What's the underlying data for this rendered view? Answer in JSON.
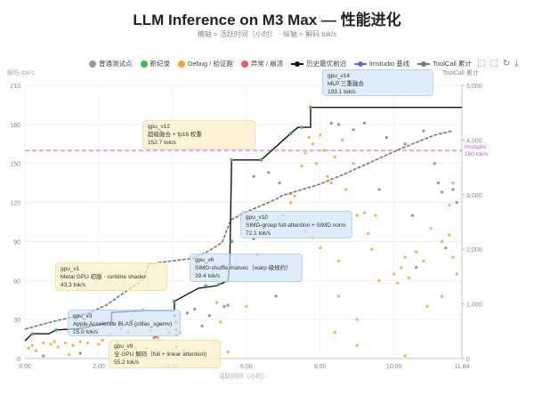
{
  "title": "LLM Inference on M3 Max — 性能进化",
  "subtitle": "横轴 = 活跃时间（小时） · 纵轴 = 解码 tok/s",
  "legend": [
    {
      "label": "普通测试点",
      "color": "#999999",
      "kind": "dot"
    },
    {
      "label": "新纪录",
      "color": "#3cb95a",
      "kind": "dot"
    },
    {
      "label": "Debug / 验证跑",
      "color": "#f2a92b",
      "kind": "dot"
    },
    {
      "label": "异常 / 崩溃",
      "color": "#e85c5c",
      "kind": "dot"
    },
    {
      "label": "历史最优前沿",
      "color": "#111111",
      "kind": "line"
    },
    {
      "label": "lmstudio 基线",
      "color": "#5b6fc9",
      "kind": "line"
    },
    {
      "label": "ToolCall 累计",
      "color": "#777777",
      "kind": "line"
    }
  ],
  "toolbar": [
    {
      "name": "zoom-select-icon",
      "glyph": "⬚"
    },
    {
      "name": "zoom-reset-icon",
      "glyph": "⬚"
    },
    {
      "name": "restore-icon",
      "glyph": "↻"
    },
    {
      "name": "download-icon",
      "glyph": "⤓"
    }
  ],
  "chart_data": {
    "type": "scatter",
    "xlabel": "活跃时间（小时）",
    "ylabel": "解码 tok/s",
    "y2label": "ToolCall 累计",
    "xlim": [
      0,
      11.84
    ],
    "ylim": [
      0,
      210
    ],
    "y2lim": [
      0,
      5000
    ],
    "xticks": [
      "0.00",
      "2.00",
      "4.00",
      "6.00",
      "8.00",
      "10.00",
      "11.84"
    ],
    "yticks": [
      0,
      30,
      60,
      90,
      120,
      150,
      180,
      210
    ],
    "y2ticks": [
      "0",
      "1,000",
      "2,000",
      "3,000",
      "4,000",
      "5,000"
    ],
    "grid": true,
    "legend_position": "top",
    "baseline": {
      "name": "lmstudio",
      "value": 160,
      "label": "160 tok/s",
      "color": "#b45cd6"
    },
    "frontier": [
      [
        0,
        13.7
      ],
      [
        0.2,
        19
      ],
      [
        0.65,
        19
      ],
      [
        0.85,
        22
      ],
      [
        1.5,
        23
      ],
      [
        1.8,
        25
      ],
      [
        2.35,
        28
      ],
      [
        2.35,
        35.5
      ],
      [
        3.3,
        37
      ],
      [
        4.05,
        37
      ],
      [
        4.05,
        44
      ],
      [
        4.7,
        54
      ],
      [
        5.2,
        56
      ],
      [
        5.5,
        60
      ],
      [
        5.55,
        72
      ],
      [
        5.6,
        152.7
      ],
      [
        6.4,
        152.7
      ],
      [
        7.2,
        173
      ],
      [
        7.4,
        177.8
      ],
      [
        7.74,
        177.8
      ],
      [
        7.74,
        193.1
      ],
      [
        11.84,
        193.1
      ]
    ],
    "toolcall_cumulative": [
      [
        0,
        537
      ],
      [
        0.6,
        650
      ],
      [
        1.73,
        830
      ],
      [
        2.21,
        980
      ],
      [
        3.25,
        1470
      ],
      [
        3.29,
        1600
      ],
      [
        3.34,
        1730
      ],
      [
        4.13,
        1800
      ],
      [
        4.54,
        1830
      ],
      [
        4.93,
        1950
      ],
      [
        5.34,
        2120
      ],
      [
        5.58,
        2540
      ],
      [
        6.06,
        2700
      ],
      [
        6.85,
        2930
      ],
      [
        6.95,
        2980
      ],
      [
        7.98,
        3190
      ],
      [
        8.7,
        3390
      ],
      [
        10.14,
        3830
      ],
      [
        11.1,
        4090
      ],
      [
        11.59,
        4170
      ]
    ],
    "series": [
      {
        "name": "新纪录",
        "color": "#3cb95a",
        "points": [
          [
            0.2,
            19
          ],
          [
            0.85,
            22
          ],
          [
            1.6,
            24
          ],
          [
            3.2,
            37
          ],
          [
            4.05,
            44
          ],
          [
            4.9,
            56
          ],
          [
            5.25,
            57
          ],
          [
            5.5,
            60
          ],
          [
            5.55,
            72
          ],
          [
            5.6,
            90
          ],
          [
            5.6,
            152.7
          ],
          [
            6.4,
            152.7
          ],
          [
            7.2,
            173
          ],
          [
            7.5,
            177.8
          ],
          [
            7.74,
            193.1
          ]
        ]
      },
      {
        "name": "Debug / 验证跑",
        "color": "#f2a92b",
        "points": [
          [
            0.1,
            8
          ],
          [
            0.2,
            10
          ],
          [
            0.3,
            6
          ],
          [
            0.5,
            12
          ],
          [
            0.7,
            11
          ],
          [
            0.8,
            13
          ],
          [
            0.9,
            9
          ],
          [
            1.1,
            12
          ],
          [
            1.3,
            10
          ],
          [
            1.5,
            13
          ],
          [
            1.7,
            12
          ],
          [
            2.0,
            11
          ],
          [
            2.1,
            14
          ],
          [
            2.3,
            18
          ],
          [
            2.6,
            23
          ],
          [
            2.8,
            20
          ],
          [
            3.0,
            25
          ],
          [
            3.2,
            28
          ],
          [
            3.4,
            22
          ],
          [
            3.6,
            16
          ],
          [
            3.7,
            26
          ],
          [
            3.9,
            20
          ],
          [
            1.2,
            3
          ],
          [
            2.8,
            10
          ],
          [
            3.3,
            8
          ],
          [
            5.2,
            43
          ],
          [
            5.3,
            28
          ],
          [
            6.0,
            40
          ],
          [
            5.5,
            5
          ],
          [
            7.0,
            110
          ],
          [
            7.2,
            120
          ],
          [
            7.3,
            125
          ],
          [
            7.5,
            148
          ],
          [
            7.6,
            158
          ],
          [
            7.7,
            170
          ],
          [
            7.8,
            165
          ],
          [
            7.9,
            150
          ],
          [
            8.0,
            172
          ],
          [
            8.1,
            160
          ],
          [
            8.2,
            140
          ],
          [
            8.3,
            135
          ],
          [
            8.4,
            155
          ],
          [
            8.6,
            168
          ],
          [
            8.7,
            130
          ],
          [
            8.9,
            150
          ],
          [
            7.6,
            98
          ],
          [
            7.8,
            93
          ],
          [
            8.0,
            85
          ],
          [
            8.5,
            75
          ],
          [
            9.0,
            110
          ],
          [
            9.2,
            112
          ],
          [
            9.3,
            96
          ],
          [
            9.4,
            84
          ],
          [
            9.5,
            110
          ],
          [
            8.5,
            48
          ],
          [
            8.4,
            20
          ],
          [
            9.0,
            30
          ],
          [
            9.6,
            60
          ],
          [
            10.0,
            65
          ],
          [
            10.2,
            70
          ],
          [
            10.3,
            78
          ],
          [
            10.1,
            58
          ],
          [
            10.4,
            62
          ],
          [
            10.6,
            82
          ],
          [
            10.8,
            75
          ],
          [
            11.0,
            100
          ],
          [
            11.3,
            90
          ],
          [
            11.5,
            95
          ],
          [
            11.6,
            78
          ],
          [
            11.7,
            65
          ],
          [
            11.3,
            48
          ],
          [
            9.0,
            10
          ],
          [
            10.3,
            2
          ],
          [
            10.9,
            40
          ],
          [
            11.5,
            118
          ],
          [
            11.6,
            135
          ]
        ]
      },
      {
        "name": "普通测试点",
        "color": "#8a8a8a",
        "points": [
          [
            0.5,
            2
          ],
          [
            1.5,
            4
          ],
          [
            2.5,
            12
          ],
          [
            3.0,
            8
          ],
          [
            4.2,
            20
          ],
          [
            4.4,
            35
          ],
          [
            4.6,
            38
          ],
          [
            5.0,
            33
          ],
          [
            5.4,
            40
          ],
          [
            4.8,
            25
          ],
          [
            6.2,
            140
          ],
          [
            6.6,
            143
          ],
          [
            6.9,
            135
          ],
          [
            7.2,
            127
          ],
          [
            6.5,
            108
          ],
          [
            6.2,
            92
          ],
          [
            8.3,
            181
          ],
          [
            8.5,
            180
          ],
          [
            8.9,
            176
          ],
          [
            9.2,
            181
          ],
          [
            9.8,
            170
          ],
          [
            10.3,
            165
          ],
          [
            10.8,
            175
          ],
          [
            11.1,
            150
          ],
          [
            11.2,
            135
          ],
          [
            11.3,
            128
          ],
          [
            11.6,
            130
          ],
          [
            11.7,
            120
          ],
          [
            9.6,
            130
          ],
          [
            10.5,
            110
          ],
          [
            10.6,
            70
          ],
          [
            11.4,
            85
          ],
          [
            3.5,
            16
          ],
          [
            2.9,
            29
          ],
          [
            6.8,
            48
          ],
          [
            4.1,
            9
          ],
          [
            4.3,
            6
          ]
        ]
      },
      {
        "name": "异常 / 崩溃",
        "color": "#e85c5c",
        "points": [
          [
            3.55,
            17
          ],
          [
            4.05,
            33
          ],
          [
            4.1,
            28
          ],
          [
            4.1,
            22
          ],
          [
            4.1,
            18
          ],
          [
            6.3,
            80
          ],
          [
            5.5,
            41
          ]
        ]
      }
    ],
    "annotations": [
      {
        "id": "v14",
        "lines": [
          "gpu_v14",
          "MLP 三重融合",
          "193.1 tok/s"
        ],
        "style": "blue"
      },
      {
        "id": "v12",
        "lines": [
          "gpu_v12",
          "超级融合 + fp16 权重",
          "152.7 tok/s"
        ],
        "style": "yellow"
      },
      {
        "id": "v10",
        "lines": [
          "gpu_v10",
          "SIMD-group full-attention + SIMD norm",
          "72.1 tok/s"
        ],
        "style": "blue"
      },
      {
        "id": "v6",
        "lines": [
          "gpu_v6",
          "SIMD-shuffle matvec（warp 级规约）",
          "39.4 tok/s"
        ],
        "style": "blue"
      },
      {
        "id": "v1",
        "lines": [
          "gpu_v1",
          "Metal GPU 初版 · runtime shader",
          "43.3 tok/s"
        ],
        "style": "yellow"
      },
      {
        "id": "v3",
        "lines": [
          "gpu_v3",
          "Apple Accelerate BLAS (cblas_sgemv)",
          "15.0 tok/s"
        ],
        "style": "blue"
      },
      {
        "id": "v9",
        "lines": [
          "gpu_v9",
          "全 GPU 解码（full + linear attention)",
          "55.2 tok/s"
        ],
        "style": "yellow"
      }
    ]
  }
}
